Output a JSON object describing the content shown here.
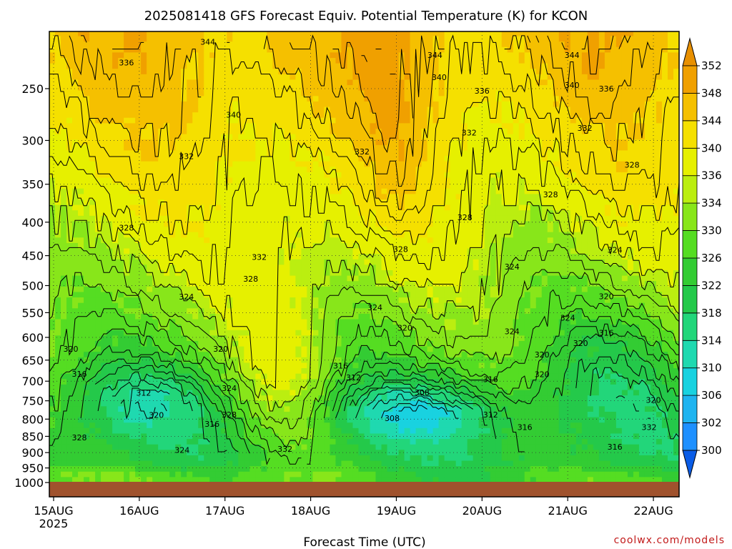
{
  "title": "2025081418 GFS Forecast Equiv. Potential Temperature (K) for KCON",
  "xlabel": "Forecast Time (UTC)",
  "credit": "coolwx.com/models",
  "chart_data": {
    "type": "heatmap",
    "title": "2025081418 GFS Forecast Equiv. Potential Temperature (K) for KCON",
    "xlabel": "Forecast Time (UTC)",
    "ylabel": "",
    "x_ticks": [
      {
        "label": "15AUG",
        "sub": "2025",
        "day": 0
      },
      {
        "label": "16AUG",
        "sub": "",
        "day": 1
      },
      {
        "label": "17AUG",
        "sub": "",
        "day": 2
      },
      {
        "label": "18AUG",
        "sub": "",
        "day": 3
      },
      {
        "label": "19AUG",
        "sub": "",
        "day": 4
      },
      {
        "label": "20AUG",
        "sub": "",
        "day": 5
      },
      {
        "label": "21AUG",
        "sub": "",
        "day": 6
      },
      {
        "label": "22AUG",
        "sub": "",
        "day": 7
      }
    ],
    "xlim_days": [
      -0.05,
      7.3
    ],
    "y_ticks": [
      250,
      300,
      350,
      400,
      450,
      500,
      550,
      600,
      650,
      700,
      750,
      800,
      850,
      900,
      950,
      1000
    ],
    "ylim_hpa": [
      200,
      1000
    ],
    "y_scale": "log-pressure",
    "grid": "dotted",
    "colorbar": {
      "levels": [
        300,
        302,
        306,
        310,
        314,
        318,
        322,
        326,
        330,
        334,
        336,
        340,
        344,
        348,
        352
      ],
      "colors": [
        "#0a5ce6",
        "#1e90ff",
        "#1fb4f0",
        "#19d2e0",
        "#1fd9b0",
        "#22d67a",
        "#24c94a",
        "#33cc33",
        "#55dd22",
        "#88e61a",
        "#bbee10",
        "#e6f000",
        "#f5e000",
        "#f5c000",
        "#f0a000",
        "#e89000"
      ],
      "placement": "right"
    },
    "contour_labels": [
      {
        "t": 1.8,
        "p": 212,
        "v": "344"
      },
      {
        "t": 0.85,
        "p": 228,
        "v": "336"
      },
      {
        "t": 4.45,
        "p": 222,
        "v": "344"
      },
      {
        "t": 6.05,
        "p": 222,
        "v": "344"
      },
      {
        "t": 4.5,
        "p": 240,
        "v": "340"
      },
      {
        "t": 6.05,
        "p": 247,
        "v": "340"
      },
      {
        "t": 6.45,
        "p": 250,
        "v": "336"
      },
      {
        "t": 5.0,
        "p": 252,
        "v": "336"
      },
      {
        "t": 2.1,
        "p": 274,
        "v": "340"
      },
      {
        "t": 4.85,
        "p": 292,
        "v": "332"
      },
      {
        "t": 6.2,
        "p": 287,
        "v": "332"
      },
      {
        "t": 1.55,
        "p": 317,
        "v": "332"
      },
      {
        "t": 3.6,
        "p": 312,
        "v": "332"
      },
      {
        "t": 6.75,
        "p": 327,
        "v": "328"
      },
      {
        "t": 5.8,
        "p": 363,
        "v": "328"
      },
      {
        "t": 4.8,
        "p": 393,
        "v": "328"
      },
      {
        "t": 0.85,
        "p": 408,
        "v": "328"
      },
      {
        "t": 2.4,
        "p": 452,
        "v": "332"
      },
      {
        "t": 4.05,
        "p": 440,
        "v": "328"
      },
      {
        "t": 6.55,
        "p": 441,
        "v": "324"
      },
      {
        "t": 5.35,
        "p": 468,
        "v": "324"
      },
      {
        "t": 2.3,
        "p": 488,
        "v": "328"
      },
      {
        "t": 1.55,
        "p": 520,
        "v": "324"
      },
      {
        "t": 6.45,
        "p": 519,
        "v": "320"
      },
      {
        "t": 3.75,
        "p": 540,
        "v": "324"
      },
      {
        "t": 6.0,
        "p": 560,
        "v": "324"
      },
      {
        "t": 4.1,
        "p": 580,
        "v": "320"
      },
      {
        "t": 5.35,
        "p": 587,
        "v": "324"
      },
      {
        "t": 6.45,
        "p": 590,
        "v": "316"
      },
      {
        "t": 6.15,
        "p": 612,
        "v": "320"
      },
      {
        "t": 0.2,
        "p": 625,
        "v": "320"
      },
      {
        "t": 1.95,
        "p": 625,
        "v": "320"
      },
      {
        "t": 5.7,
        "p": 637,
        "v": "320"
      },
      {
        "t": 3.35,
        "p": 663,
        "v": "316"
      },
      {
        "t": 0.3,
        "p": 682,
        "v": "316"
      },
      {
        "t": 5.7,
        "p": 683,
        "v": "320"
      },
      {
        "t": 3.5,
        "p": 691,
        "v": "312"
      },
      {
        "t": 5.1,
        "p": 695,
        "v": "316"
      },
      {
        "t": 2.05,
        "p": 717,
        "v": "324"
      },
      {
        "t": 1.05,
        "p": 729,
        "v": "312"
      },
      {
        "t": 4.3,
        "p": 728,
        "v": "308"
      },
      {
        "t": 7.0,
        "p": 748,
        "v": "320"
      },
      {
        "t": 2.05,
        "p": 787,
        "v": "328"
      },
      {
        "t": 1.2,
        "p": 788,
        "v": "320"
      },
      {
        "t": 5.1,
        "p": 787,
        "v": "312"
      },
      {
        "t": 3.95,
        "p": 797,
        "v": "308"
      },
      {
        "t": 1.85,
        "p": 814,
        "v": "316"
      },
      {
        "t": 5.5,
        "p": 823,
        "v": "316"
      },
      {
        "t": 6.95,
        "p": 823,
        "v": "332"
      },
      {
        "t": 0.3,
        "p": 853,
        "v": "328"
      },
      {
        "t": 6.55,
        "p": 882,
        "v": "316"
      },
      {
        "t": 1.5,
        "p": 892,
        "v": "324"
      },
      {
        "t": 2.7,
        "p": 888,
        "v": "332"
      }
    ]
  }
}
